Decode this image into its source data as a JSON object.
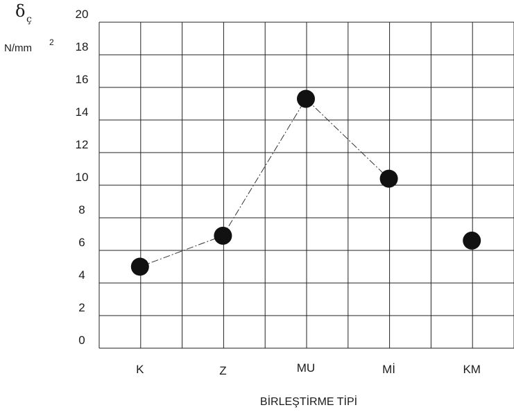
{
  "chart_data": {
    "type": "scatter",
    "categories": [
      "K",
      "Z",
      "MU",
      "Mİ",
      "KM"
    ],
    "values": [
      5.0,
      6.9,
      15.3,
      10.4,
      6.6
    ],
    "connected": [
      true,
      true,
      true,
      true,
      false
    ],
    "ylabel_symbol": "δ",
    "ylabel_subscript": "ç",
    "yunit": "N/mm",
    "yunit_sup": "2",
    "xlabel": "BİRLEŞTİRME TİPİ",
    "ylim": [
      0,
      20
    ],
    "yticks": [
      "0",
      "2",
      "4",
      "6",
      "8",
      "10",
      "12",
      "14",
      "16",
      "18",
      "20"
    ],
    "grid": true,
    "colors": {
      "marker": "#111111",
      "line": "#333333",
      "grid": "#222222"
    }
  }
}
